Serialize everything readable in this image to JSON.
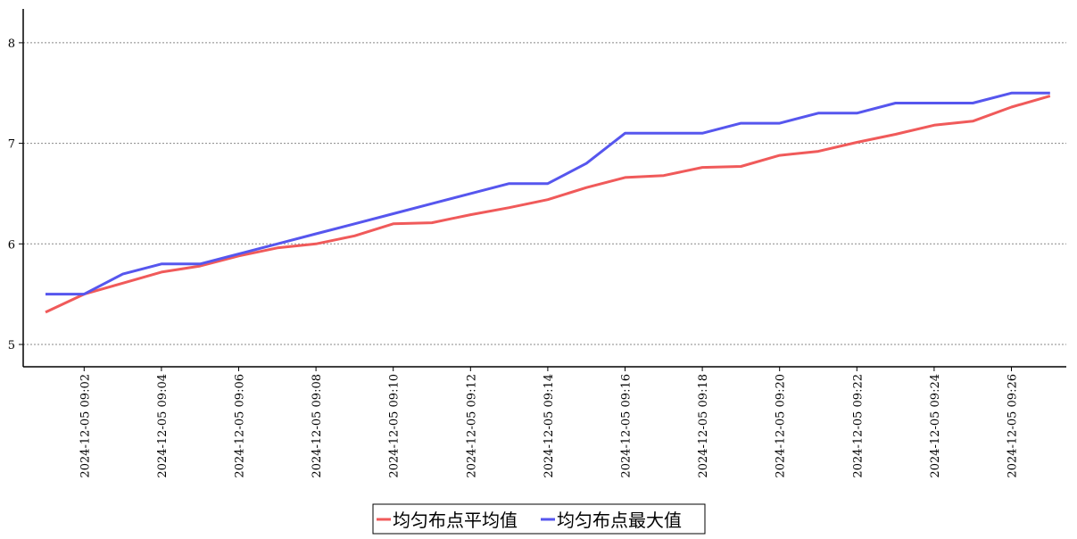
{
  "chart_data": {
    "type": "line",
    "title": "",
    "xlabel": "",
    "ylabel": "",
    "ylim": [
      4.78,
      8.34
    ],
    "yticks": [
      5,
      6,
      7,
      8
    ],
    "grid": "horizontal dotted",
    "legend_position": "bottom-center",
    "x": [
      "09:01",
      "09:02",
      "09:03",
      "09:04",
      "09:05",
      "09:06",
      "09:07",
      "09:08",
      "09:09",
      "09:10",
      "09:11",
      "09:12",
      "09:13",
      "09:14",
      "09:15",
      "09:16",
      "09:17",
      "09:18",
      "09:19",
      "09:20",
      "09:21",
      "09:22",
      "09:23",
      "09:24",
      "09:25",
      "09:26",
      "09:27"
    ],
    "xtick_labels": [
      "2024-12-05 09:02",
      "2024-12-05 09:04",
      "2024-12-05 09:06",
      "2024-12-05 09:08",
      "2024-12-05 09:10",
      "2024-12-05 09:12",
      "2024-12-05 09:14",
      "2024-12-05 09:16",
      "2024-12-05 09:18",
      "2024-12-05 09:20",
      "2024-12-05 09:22",
      "2024-12-05 09:24",
      "2024-12-05 09:26"
    ],
    "series": [
      {
        "name": "均匀布点平均值",
        "color": "#f05a5a",
        "values": [
          5.32,
          5.5,
          5.61,
          5.72,
          5.78,
          5.88,
          5.96,
          6.0,
          6.08,
          6.2,
          6.21,
          6.29,
          6.36,
          6.44,
          6.56,
          6.66,
          6.68,
          6.76,
          6.77,
          6.88,
          6.92,
          7.01,
          7.09,
          7.18,
          7.22,
          7.36,
          7.47
        ]
      },
      {
        "name": "均匀布点最大值",
        "color": "#5656ee",
        "values": [
          5.5,
          5.5,
          5.7,
          5.8,
          5.8,
          5.9,
          6.0,
          6.1,
          6.2,
          6.3,
          6.4,
          6.5,
          6.6,
          6.6,
          6.8,
          7.1,
          7.1,
          7.1,
          7.2,
          7.2,
          7.3,
          7.3,
          7.4,
          7.4,
          7.4,
          7.5,
          7.5
        ]
      }
    ]
  }
}
